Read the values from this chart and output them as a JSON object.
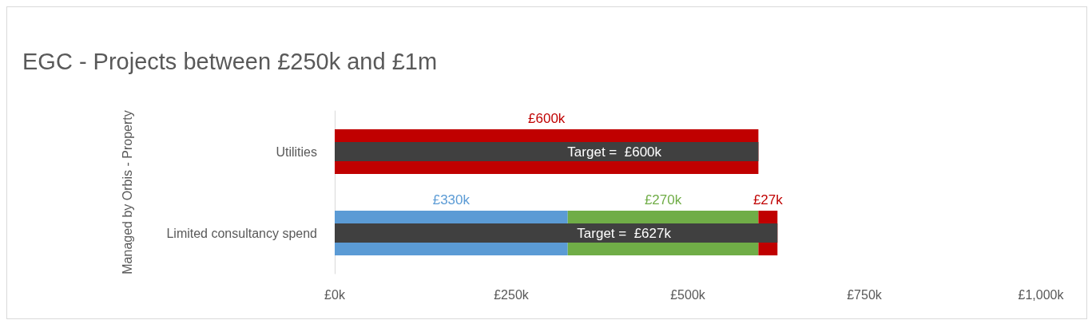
{
  "chart_data": {
    "type": "bar",
    "orientation": "horizontal",
    "stacked": true,
    "title": "EGC - Projects between £250k and £1m",
    "ylabel": "Managed by Orbis - Property",
    "categories": [
      "Utilities",
      "Limited consultancy spend"
    ],
    "series": [
      {
        "color": "#5b9bd5",
        "values": [
          null,
          330
        ],
        "value_labels": [
          null,
          "£330k"
        ]
      },
      {
        "color": "#70ad47",
        "values": [
          null,
          270
        ],
        "value_labels": [
          null,
          "£270k"
        ]
      },
      {
        "color": "#c00000",
        "values": [
          600,
          27
        ],
        "value_labels": [
          "£600k",
          "£27k"
        ]
      },
      {
        "color": "#404040",
        "axis": "y2",
        "values": [
          600,
          627
        ],
        "value_labels": [
          "Target =  £600k",
          "Target =  £627k"
        ]
      }
    ],
    "xlim": [
      0,
      1000
    ],
    "xticks": [
      {
        "value": 0,
        "label": "£0k"
      },
      {
        "value": 250,
        "label": "£250k"
      },
      {
        "value": 500,
        "label": "£500k"
      },
      {
        "value": 750,
        "label": "£750k"
      },
      {
        "value": 1000,
        "label": "£1,000k"
      }
    ],
    "grid": false
  }
}
